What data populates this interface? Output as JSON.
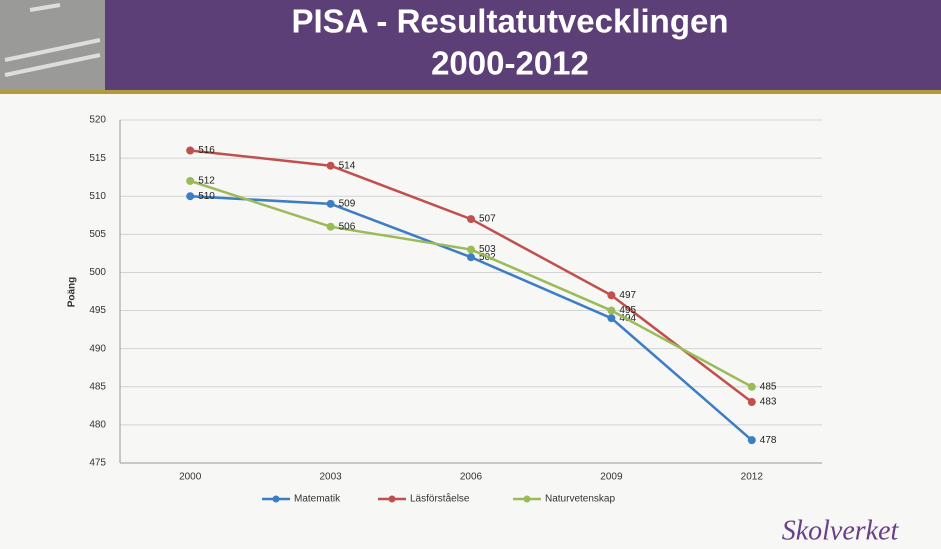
{
  "chart_data": {
    "type": "line",
    "title": [
      "PISA - Resultatutvecklingen",
      "2000-2012"
    ],
    "y_label": "Poäng",
    "categories": [
      "2000",
      "2003",
      "2006",
      "2009",
      "2012"
    ],
    "series": [
      {
        "name": "Matematik",
        "color": "#3c7dc4",
        "values": [
          510,
          509,
          502,
          494,
          478
        ]
      },
      {
        "name": "Läsförståelse",
        "color": "#c0504d",
        "values": [
          516,
          514,
          507,
          497,
          483
        ]
      },
      {
        "name": "Naturvetenskap",
        "color": "#9bbb59",
        "values": [
          512,
          506,
          503,
          495,
          485
        ]
      }
    ],
    "ylim": [
      475,
      520
    ],
    "yticks": [
      475,
      480,
      485,
      490,
      495,
      500,
      505,
      510,
      515,
      520
    ],
    "grid": true,
    "data_labels": true,
    "legend": "bottom"
  },
  "footer": {
    "logo": "Skolverket"
  }
}
